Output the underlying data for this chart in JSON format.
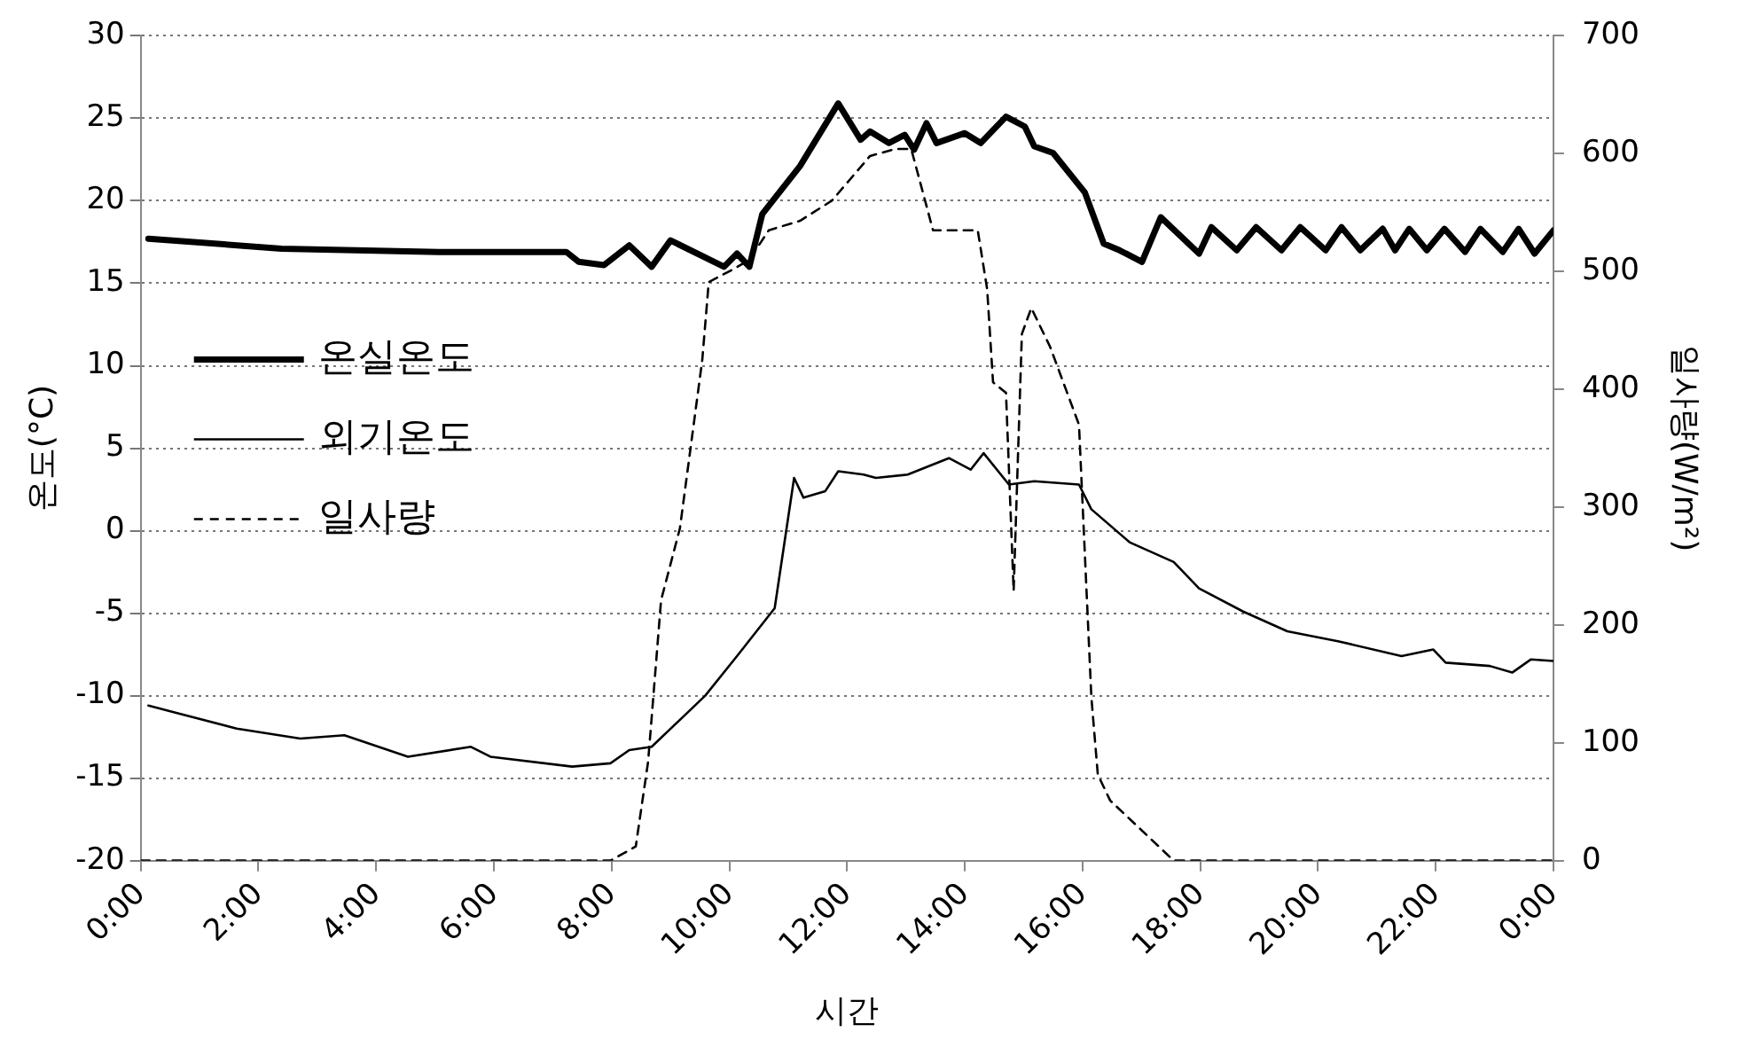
{
  "chart_data": {
    "type": "line",
    "xlabel": "시간",
    "ylabel": "온도(°C)",
    "y2label": "일사량(W/m²)",
    "xlim": [
      0,
      24
    ],
    "xticks": [
      {
        "value": 0,
        "label": "0:00"
      },
      {
        "value": 2,
        "label": "2:00"
      },
      {
        "value": 4,
        "label": "4:00"
      },
      {
        "value": 6,
        "label": "6:00"
      },
      {
        "value": 8,
        "label": "8:00"
      },
      {
        "value": 10,
        "label": "10:00"
      },
      {
        "value": 12,
        "label": "12:00"
      },
      {
        "value": 14,
        "label": "14:00"
      },
      {
        "value": 16,
        "label": "16:00"
      },
      {
        "value": 18,
        "label": "18:00"
      },
      {
        "value": 20,
        "label": "20:00"
      },
      {
        "value": 22,
        "label": "22:00"
      },
      {
        "value": 24,
        "label": "0:00"
      }
    ],
    "ylim": [
      -20,
      30
    ],
    "yticks": [
      -20,
      -15,
      -10,
      -5,
      0,
      5,
      10,
      15,
      20,
      25,
      30
    ],
    "y2lim": [
      0,
      700
    ],
    "y2ticks": [
      0,
      100,
      200,
      300,
      400,
      500,
      600,
      700
    ],
    "grid": "y",
    "legend": "left",
    "marker": "none",
    "series": [
      {
        "name": "온실온도",
        "color": "#000000",
        "line_style": "solid",
        "x": [
          0.13,
          2.39,
          5.06,
          7.23,
          7.44,
          7.87,
          8.3,
          8.68,
          9.0,
          9.91,
          10.13,
          10.34,
          10.56,
          11.2,
          11.85,
          12.23,
          12.39,
          12.71,
          12.98,
          13.14,
          13.35,
          13.52,
          14.0,
          14.27,
          14.7,
          15.02,
          15.18,
          15.5,
          16.04,
          16.36,
          16.63,
          17.01,
          17.33,
          17.98,
          18.19,
          18.62,
          18.95,
          19.38,
          19.7,
          20.13,
          20.4,
          20.72,
          21.1,
          21.31,
          21.55,
          21.85,
          22.15,
          22.5,
          22.76,
          23.14,
          23.41,
          23.68,
          24
        ],
        "values": [
          17.7,
          17.1,
          16.9,
          16.9,
          16.3,
          16.1,
          17.3,
          16.0,
          17.6,
          16.0,
          16.8,
          16.0,
          19.2,
          22.1,
          25.9,
          23.7,
          24.2,
          23.5,
          24.0,
          23.1,
          24.7,
          23.5,
          24.1,
          23.5,
          25.1,
          24.5,
          23.3,
          22.9,
          20.5,
          17.4,
          17.0,
          16.3,
          19.0,
          16.8,
          18.4,
          17.0,
          18.4,
          17.0,
          18.4,
          17.0,
          18.4,
          17.0,
          18.3,
          17.0,
          18.3,
          17.0,
          18.3,
          16.9,
          18.3,
          16.9,
          18.3,
          16.8,
          18.2
        ]
      },
      {
        "name": "외기온도",
        "color": "#000000",
        "line_style": "solid",
        "x": [
          0.13,
          0.56,
          1.63,
          2.71,
          3.46,
          4.54,
          5.61,
          5.94,
          7.33,
          7.98,
          8.3,
          8.68,
          9.59,
          10.13,
          10.77,
          11.1,
          11.26,
          11.63,
          11.85,
          12.28,
          12.49,
          13.03,
          13.73,
          14.1,
          14.32,
          14.75,
          15.18,
          15.94,
          16.15,
          16.8,
          17.55,
          17.98,
          18.73,
          19.48,
          20.34,
          21.42,
          21.96,
          22.17,
          22.92,
          23.3,
          23.62,
          24
        ],
        "values": [
          -10.6,
          -11.0,
          -12.0,
          -12.6,
          -12.4,
          -13.7,
          -13.1,
          -13.7,
          -14.3,
          -14.1,
          -13.3,
          -13.1,
          -10.0,
          -7.6,
          -4.7,
          3.2,
          2.0,
          2.4,
          3.6,
          3.4,
          3.2,
          3.4,
          4.4,
          3.7,
          4.7,
          2.8,
          3.0,
          2.8,
          1.3,
          -0.7,
          -1.9,
          -3.5,
          -4.9,
          -6.1,
          -6.7,
          -7.6,
          -7.2,
          -8.0,
          -8.2,
          -8.6,
          -7.8,
          -7.9
        ]
      },
      {
        "name": "일사량",
        "color": "#000000",
        "line_style": "dashed",
        "axis": "y2",
        "x": [
          0,
          7.98,
          8.41,
          8.62,
          8.84,
          9.16,
          9.54,
          9.65,
          10.07,
          10.34,
          10.67,
          11.2,
          11.74,
          12.39,
          12.82,
          13.09,
          13.46,
          14.22,
          14.38,
          14.48,
          14.7,
          14.83,
          14.97,
          15.13,
          15.45,
          15.94,
          16.15,
          16.26,
          16.47,
          17.55,
          24
        ],
        "values": [
          0,
          0,
          12,
          84,
          221,
          282,
          425,
          491,
          502,
          510,
          535,
          543,
          560,
          598,
          604,
          604,
          535,
          535,
          485,
          406,
          397,
          229,
          447,
          469,
          436,
          370,
          139,
          73,
          51,
          0,
          0
        ]
      }
    ]
  }
}
